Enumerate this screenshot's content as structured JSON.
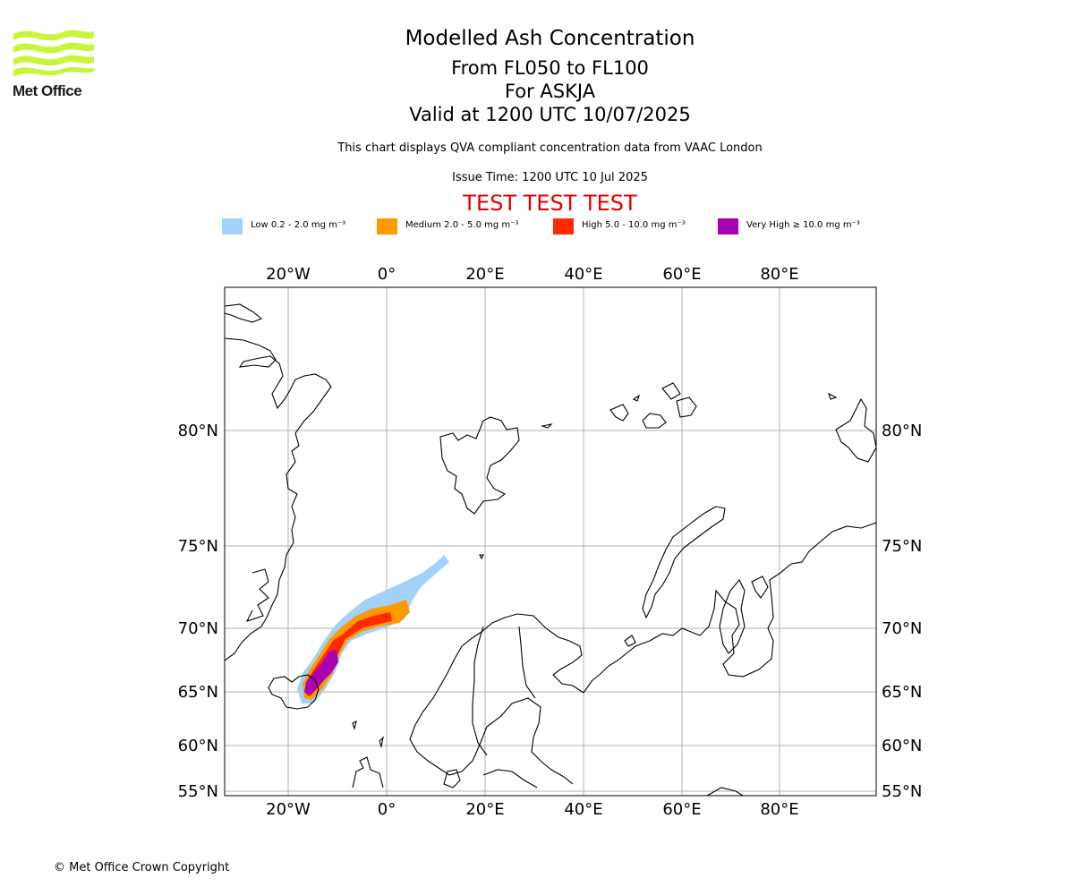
{
  "logo": {
    "text": "Met Office"
  },
  "title": {
    "main": "Modelled Ash Concentration",
    "levels": "From FL050 to FL100",
    "volcano": "For ASKJA",
    "valid": "Valid at 1200 UTC 10/07/2025",
    "description": "This chart displays QVA compliant concentration data from VAAC London",
    "issue_time": "Issue Time: 1200 UTC 10 Jul 2025",
    "test_banner": "TEST TEST TEST"
  },
  "legend": [
    {
      "label": "Low 0.2 - 2.0 mg m⁻³",
      "color": "#a0d2fa"
    },
    {
      "label": "Medium 2.0 - 5.0 mg m⁻³",
      "color": "#ff9900"
    },
    {
      "label": "High 5.0 - 10.0 mg m⁻³",
      "color": "#ff2a00"
    },
    {
      "label": "Very High ≥ 10.0 mg m⁻³",
      "color": "#a800b5"
    }
  ],
  "map": {
    "lon_labels": [
      "20°W",
      "0°",
      "20°E",
      "40°E",
      "60°E",
      "80°E"
    ],
    "lat_labels": [
      "80°N",
      "75°N",
      "70°N",
      "65°N",
      "60°N",
      "55°N"
    ],
    "grid_color": "#b0b0b0",
    "coast_color": "#000000"
  },
  "copyright": "© Met Office Crown Copyright"
}
